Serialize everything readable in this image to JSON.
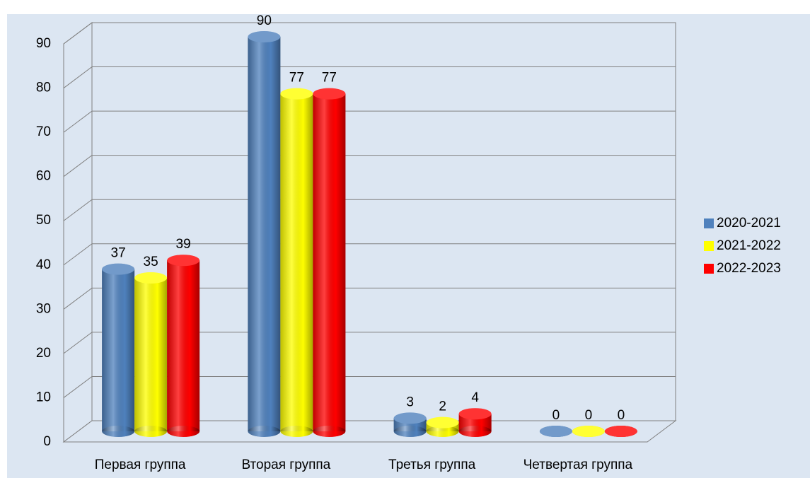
{
  "chart_data": {
    "type": "bar",
    "categories": [
      "Первая группа",
      "Вторая группа",
      "Третья группа",
      "Четвертая группа"
    ],
    "series": [
      {
        "name": "2020-2021",
        "color": "#4f81bd",
        "values": [
          37,
          90,
          3,
          0
        ]
      },
      {
        "name": "2021-2022",
        "color": "#ffff00",
        "values": [
          35,
          77,
          2,
          0
        ]
      },
      {
        "name": "2022-2023",
        "color": "#ff0000",
        "values": [
          39,
          77,
          4,
          0
        ]
      }
    ],
    "ylim": [
      0,
      90
    ],
    "yticks": [
      0,
      10,
      20,
      30,
      40,
      50,
      60,
      70,
      80,
      90
    ],
    "grid": true,
    "legend": "right"
  }
}
